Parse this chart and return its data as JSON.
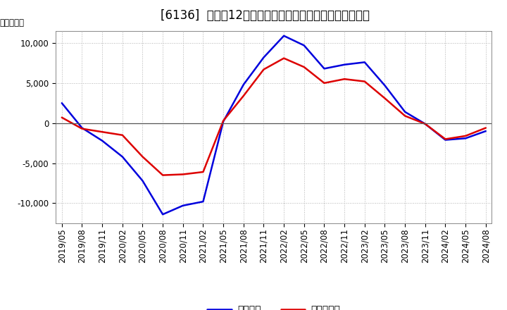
{
  "title": "[6136]  利益だ12か月移動合計の対前年同期増減額の推移",
  "ylabel": "（百万円）",
  "ylim": [
    -12500,
    11500
  ],
  "yticks": [
    -10000,
    -5000,
    0,
    5000,
    10000
  ],
  "xtick_labels": [
    "2019/05",
    "2019/08",
    "2019/11",
    "2020/02",
    "2020/05",
    "2020/08",
    "2020/11",
    "2021/02",
    "2021/05",
    "2021/08",
    "2021/11",
    "2022/02",
    "2022/05",
    "2022/08",
    "2022/11",
    "2023/02",
    "2023/05",
    "2023/08",
    "2023/11",
    "2024/02",
    "2024/05",
    "2024/08"
  ],
  "blue_line": {
    "label": "経常利益",
    "color": "#0000dd",
    "y": [
      2500,
      -600,
      -2200,
      -4200,
      -7200,
      -11400,
      -10300,
      -9800,
      200,
      4800,
      8200,
      10900,
      9700,
      6800,
      7300,
      7600,
      4700,
      1400,
      -100,
      -2100,
      -1900,
      -1000
    ]
  },
  "red_line": {
    "label": "当期純利益",
    "color": "#dd0000",
    "y": [
      700,
      -700,
      -1100,
      -1500,
      -4200,
      -6500,
      -6400,
      -6100,
      300,
      3400,
      6700,
      8100,
      7000,
      5000,
      5500,
      5200,
      3100,
      900,
      -100,
      -2000,
      -1600,
      -600
    ]
  },
  "background_color": "#ffffff",
  "grid_color": "#aaaaaa",
  "line_width": 1.8,
  "legend_fontsize": 10,
  "title_fontsize": 12,
  "axis_fontsize": 8.5
}
